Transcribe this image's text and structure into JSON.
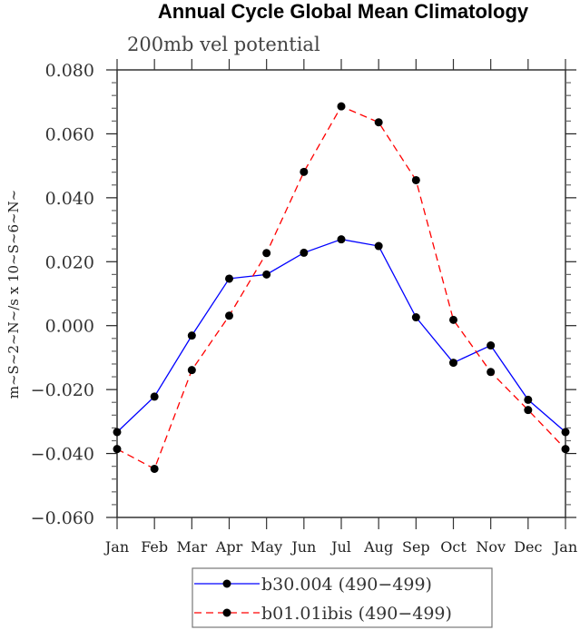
{
  "chart_data": {
    "type": "line",
    "title": "Annual Cycle Global Mean Climatology",
    "subtitle": "200mb vel potential",
    "xlabel": "",
    "ylabel": "m~S~2~N~/s x 10~S~6~N~",
    "categories": [
      "Jan",
      "Feb",
      "Mar",
      "Apr",
      "May",
      "Jun",
      "Jul",
      "Aug",
      "Sep",
      "Oct",
      "Nov",
      "Dec",
      "Jan"
    ],
    "ylim": [
      -0.06,
      0.08
    ],
    "yticks": [
      0.08,
      0.06,
      0.04,
      0.02,
      0.0,
      -0.02,
      -0.04,
      -0.06
    ],
    "ytick_labels": [
      "0.080",
      "0.060",
      "0.040",
      "0.020",
      "0.000",
      "−0.020",
      "−0.040",
      "−0.060"
    ],
    "minor_ytick_step": 0.004,
    "grid": false,
    "legend_position": "bottom-center",
    "series": [
      {
        "name": "b30.004 (490−499)",
        "color": "#0000ff",
        "dash": "solid",
        "values": [
          -0.0333,
          -0.0222,
          -0.0031,
          0.0147,
          0.016,
          0.0228,
          0.027,
          0.0249,
          0.0026,
          -0.0116,
          -0.0062,
          -0.0232,
          -0.0333
        ]
      },
      {
        "name": "b01.01ibis (490−499)",
        "color": "#ff0000",
        "dash": "dashed",
        "values": [
          -0.0386,
          -0.0448,
          -0.0139,
          0.0031,
          0.0227,
          0.0481,
          0.0686,
          0.0636,
          0.0455,
          0.0018,
          -0.0145,
          -0.0264,
          -0.0386
        ]
      }
    ]
  }
}
